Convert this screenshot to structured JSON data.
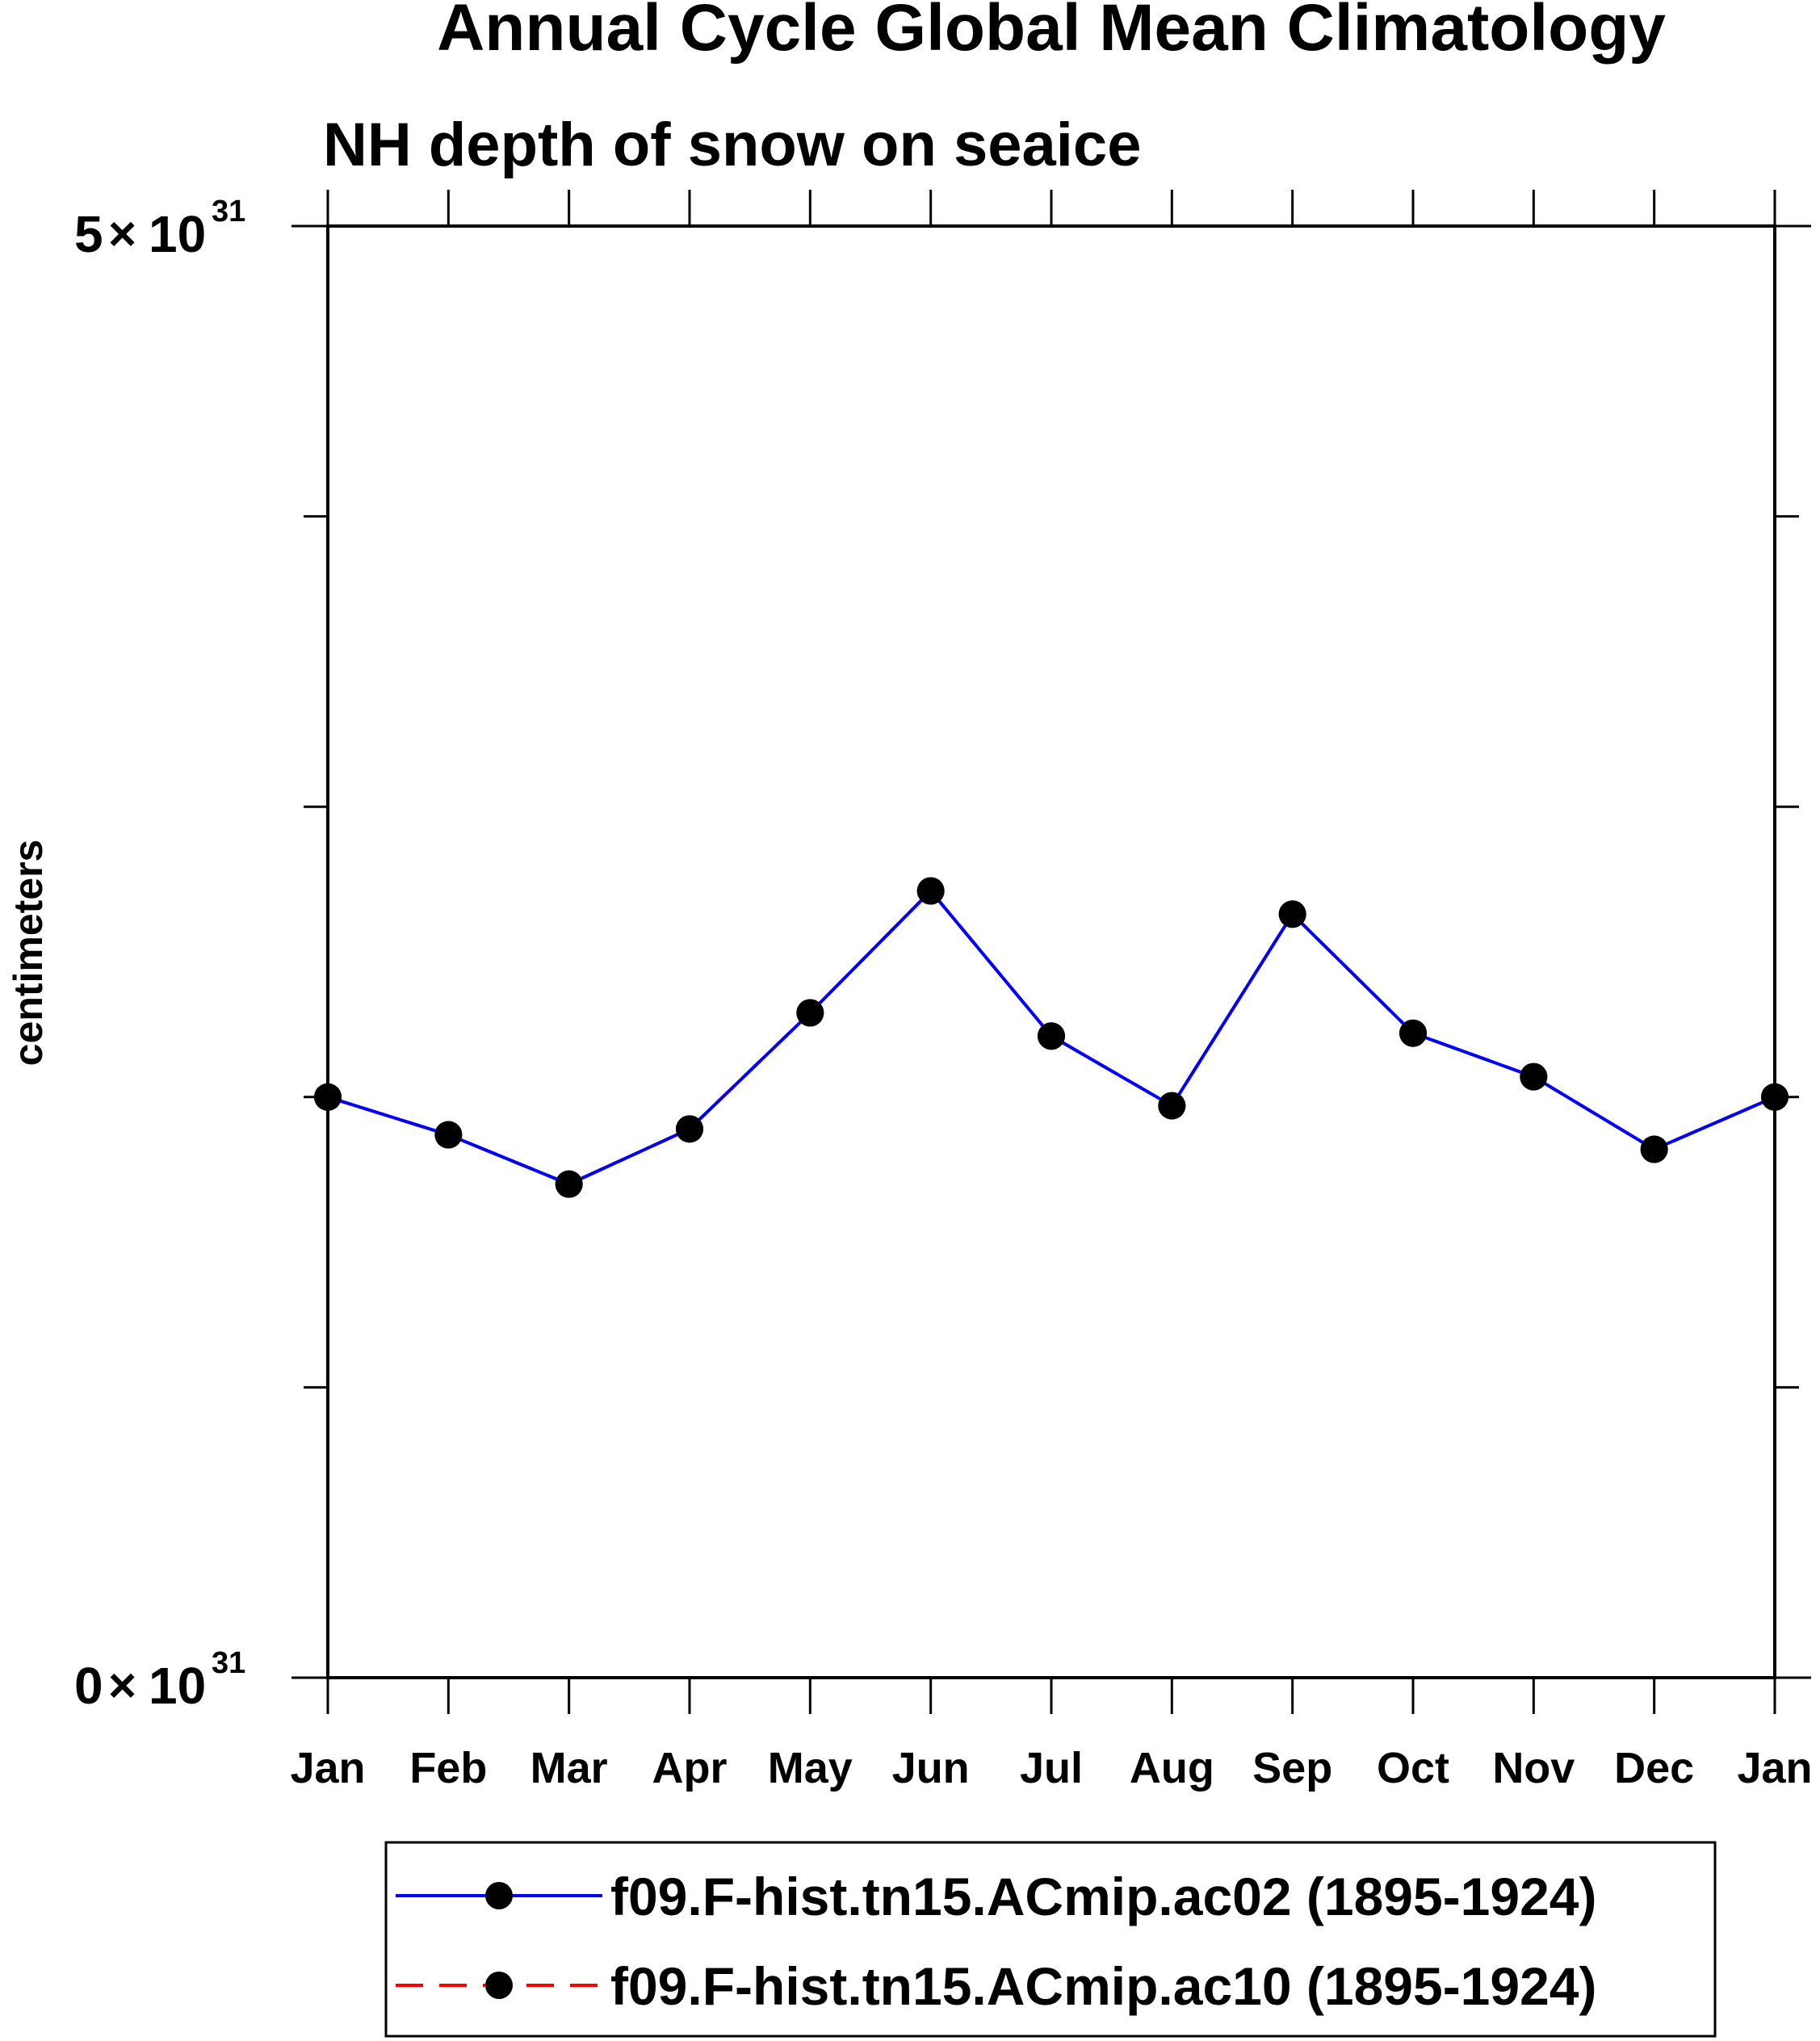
{
  "chart_data": {
    "type": "line",
    "title": "Annual Cycle Global Mean Climatology",
    "subtitle": "NH depth of snow on seaice",
    "ylabel": "centimeters",
    "xlabel": "",
    "categories": [
      "Jan",
      "Feb",
      "Mar",
      "Apr",
      "May",
      "Jun",
      "Jul",
      "Aug",
      "Sep",
      "Oct",
      "Nov",
      "Dec",
      "Jan"
    ],
    "ylim": [
      0,
      5
    ],
    "y_exponent": "31",
    "ytick_labels": [
      {
        "value": 5,
        "mantissa": "5",
        "times": "×",
        "base": "10",
        "exp": "31"
      },
      {
        "value": 0,
        "mantissa": "0",
        "times": "×",
        "base": "10",
        "exp": "31"
      }
    ],
    "y_minor_ticks": [
      1,
      2,
      3,
      4
    ],
    "grid": false,
    "series": [
      {
        "name": "f09.F-hist.tn15.ACmip.ac02 (1895-1924)",
        "color": "#0000ff",
        "dash": "solid",
        "marker": "circle",
        "values": [
          2.0,
          1.87,
          1.7,
          1.89,
          2.29,
          2.71,
          2.21,
          1.97,
          2.63,
          2.22,
          2.07,
          1.82,
          2.0
        ]
      },
      {
        "name": "f09.F-hist.tn15.ACmip.ac10 (1895-1924)",
        "color": "#ff0000",
        "dash": "dashed",
        "marker": "circle",
        "values": [
          2.0,
          1.87,
          1.7,
          1.89,
          2.29,
          2.71,
          2.21,
          1.97,
          2.63,
          2.22,
          2.07,
          1.82,
          2.0
        ]
      }
    ],
    "legend_position": "bottom"
  }
}
